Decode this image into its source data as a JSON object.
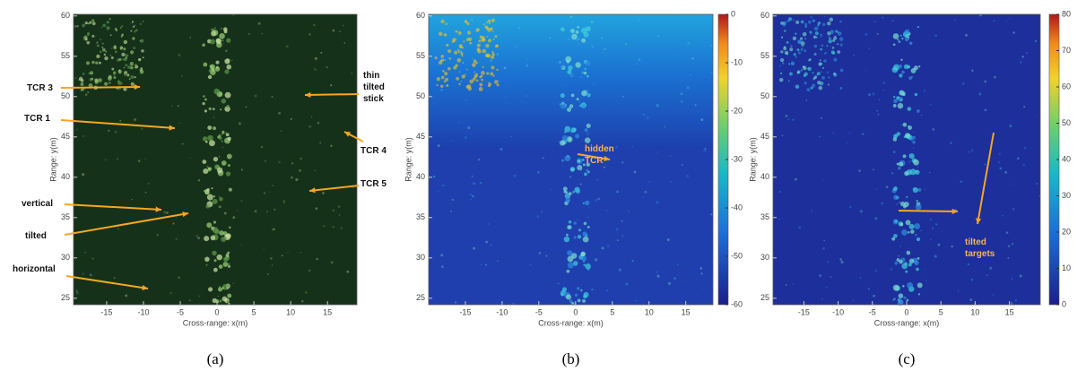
{
  "chart_data": [
    {
      "type": "image",
      "caption": "(a)",
      "xlabel": "Cross-range: x(m)",
      "ylabel": "Range: y(m)",
      "xlim": [
        -19.5,
        19
      ],
      "ylim": [
        24.2,
        60.2
      ],
      "xticks": [
        -15,
        -10,
        -5,
        0,
        5,
        10,
        15
      ],
      "yticks": [
        60,
        55,
        50,
        45,
        40,
        35,
        30,
        25
      ],
      "annotations": [
        "TCR 3",
        "TCR 1",
        "thin tilted stick",
        "TCR 4",
        "TCR 5",
        "vertical",
        "tilted",
        "horizontal"
      ]
    },
    {
      "type": "image",
      "caption": "(b)",
      "xlabel": "Cross-range: x(m)",
      "ylabel": "Range: y(m)",
      "xlim": [
        -20,
        18.7
      ],
      "ylim": [
        24.2,
        60.2
      ],
      "xticks": [
        -15,
        -10,
        -5,
        0,
        5,
        10,
        15
      ],
      "yticks": [
        60,
        55,
        50,
        45,
        40,
        35,
        30,
        25
      ],
      "annotations": [
        "hidden TCR"
      ],
      "colorbar": {
        "lim": [
          -60,
          0
        ],
        "ticks": [
          0,
          -10,
          -20,
          -30,
          -40,
          -50,
          -60
        ]
      }
    },
    {
      "type": "image",
      "caption": "(c)",
      "xlabel": "Cross-range: x(m)",
      "ylabel": "Range: y(m)",
      "xlim": [
        -19.5,
        19.5
      ],
      "ylim": [
        24.2,
        60.2
      ],
      "xticks": [
        -15,
        -10,
        -5,
        0,
        5,
        10,
        15
      ],
      "yticks": [
        60,
        55,
        50,
        45,
        40,
        35,
        30,
        25
      ],
      "annotations": [
        "tilted targets"
      ],
      "colorbar": {
        "lim": [
          0,
          80
        ],
        "ticks": [
          80,
          70,
          60,
          50,
          40,
          30,
          20,
          10,
          0
        ]
      }
    }
  ]
}
